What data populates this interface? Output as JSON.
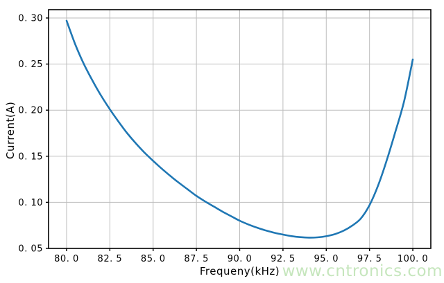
{
  "figure": {
    "background": "#ffffff",
    "text_color": "#000000"
  },
  "watermark": {
    "text": "www.cntronics.com",
    "color": "#c6e6bd"
  },
  "chart_data": {
    "type": "line",
    "title": "",
    "xlabel": "Frequeny(kHz)",
    "ylabel": "Current(A)",
    "xlim": [
      78.96,
      101.04
    ],
    "ylim": [
      0.05,
      0.309
    ],
    "grid": true,
    "grid_color": "#bdbdbd",
    "spine_color": "#000000",
    "line_color": "#1f77b4",
    "legend": "none",
    "x_ticks": [
      80.0,
      82.5,
      85.0,
      87.5,
      90.0,
      92.5,
      95.0,
      97.5,
      100.0
    ],
    "x_tick_labels": [
      "80. 0",
      "82. 5",
      "85. 0",
      "87. 5",
      "90. 0",
      "92. 5",
      "95. 0",
      "97. 5",
      "100. 0"
    ],
    "y_ticks": [
      0.05,
      0.1,
      0.15,
      0.2,
      0.25,
      0.3
    ],
    "y_tick_labels": [
      "0. 05",
      "0. 10",
      "0. 15",
      "0. 20",
      "0. 25",
      "0. 30"
    ],
    "series": [
      {
        "name": "current-vs-frequency",
        "x": [
          80.0,
          80.5,
          81.0,
          81.5,
          82.0,
          82.5,
          83.0,
          83.5,
          84.0,
          84.5,
          85.0,
          85.5,
          86.0,
          86.5,
          87.0,
          87.5,
          88.0,
          88.5,
          89.0,
          89.5,
          90.0,
          90.5,
          91.0,
          91.5,
          92.0,
          92.5,
          93.0,
          93.5,
          94.0,
          94.5,
          95.0,
          95.5,
          96.0,
          96.5,
          97.0,
          97.5,
          98.0,
          98.5,
          99.0,
          99.5,
          100.0
        ],
        "y": [
          0.297,
          0.2715,
          0.25,
          0.232,
          0.2155,
          0.201,
          0.1875,
          0.175,
          0.164,
          0.154,
          0.145,
          0.1365,
          0.1285,
          0.121,
          0.114,
          0.107,
          0.101,
          0.0955,
          0.09,
          0.085,
          0.08,
          0.076,
          0.0725,
          0.0695,
          0.067,
          0.065,
          0.0633,
          0.0622,
          0.0617,
          0.062,
          0.0632,
          0.0655,
          0.0692,
          0.0747,
          0.0825,
          0.097,
          0.1185,
          0.146,
          0.177,
          0.21,
          0.255
        ]
      }
    ],
    "min_point": {
      "x": 94.0,
      "y": 0.0617
    },
    "start_point": {
      "x": 80.0,
      "y": 0.297
    },
    "end_point": {
      "x": 100.0,
      "y": 0.255
    }
  }
}
